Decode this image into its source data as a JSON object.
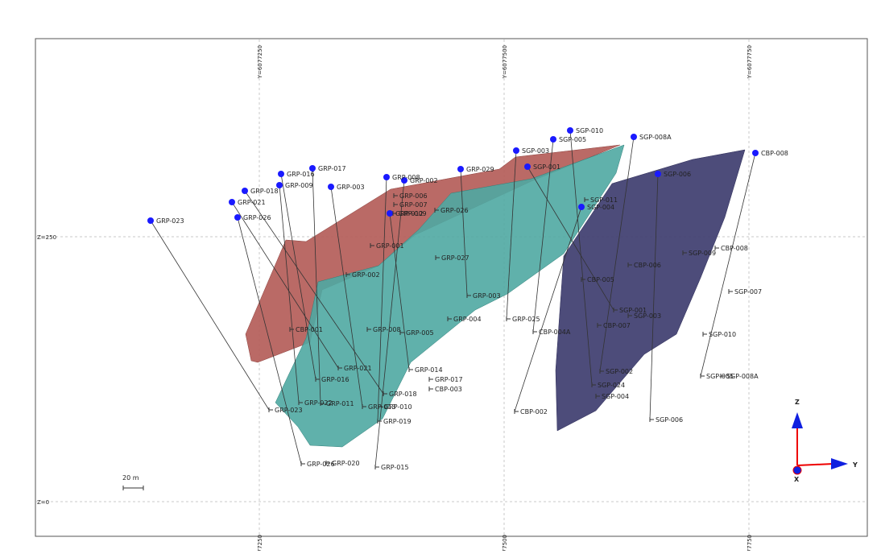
{
  "grid": {
    "y_labels": [
      "Y=6077250",
      "Y=6077500",
      "Y=6077750"
    ],
    "z_labels": [
      "Z=250",
      "Z=0"
    ]
  },
  "holes": [
    {
      "collar": "GRP-023",
      "end": "GRP-023"
    },
    {
      "collar": "GRP-021",
      "end": "GRP-021"
    },
    {
      "collar": "GRP-026",
      "end": "GRP-026"
    },
    {
      "collar": "GRP-018",
      "end": "GRP-018"
    },
    {
      "collar": "GRP-016",
      "end": "GRP-016"
    },
    {
      "collar": "GRP-009",
      "end": "GRP-022"
    },
    {
      "collar": "GRP-017",
      "end": "GRP-011"
    },
    {
      "collar": "GRP-003",
      "end": "GRP-013"
    },
    {
      "collar": "GRP-008",
      "end": "GRP-019"
    },
    {
      "collar": "GRP-002",
      "end": "GRP-015"
    },
    {
      "collar": "GRP-012",
      "end": "GRP-014"
    },
    {
      "collar": "GRP-029",
      "end": "GRP-003"
    },
    {
      "collar": "SGP-003",
      "end": "GRP-025"
    },
    {
      "collar": "SGP-005",
      "end": "CBP-004A"
    },
    {
      "collar": "SGP-010",
      "end": "SGP-024"
    },
    {
      "collar": "SGP-008A",
      "end": "SGP-002"
    },
    {
      "collar": "SGP-006",
      "end": "SGP-006"
    },
    {
      "collar": "SGP-004",
      "end": "CBP-002"
    },
    {
      "collar": "CBP-008",
      "end": "SGP-005"
    },
    {
      "collar": "SGP-001",
      "end": "SGP-001"
    }
  ],
  "other_labels": [
    "GRP-001",
    "GRP-002",
    "GRP-004",
    "GRP-005",
    "GRP-008",
    "GRP-017",
    "GRP-010",
    "GRP-020",
    "GRP-027",
    "GRP-006",
    "GRP-007",
    "GRP-026",
    "GRP-009",
    "CBP-001",
    "CBP-003",
    "CBP-005",
    "CBP-006",
    "CBP-007",
    "CBP-008",
    "SGP-003",
    "SGP-004",
    "SGP-007",
    "SGP-008A",
    "SGP-009",
    "SGP-010",
    "SGP-011"
  ],
  "scale_bar": "20 m",
  "axes": {
    "z": "Z",
    "y": "Y",
    "x": "X"
  }
}
